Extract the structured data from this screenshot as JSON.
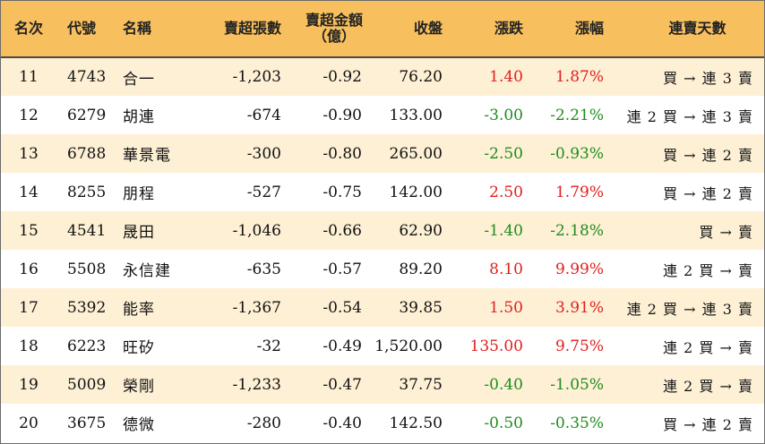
{
  "headers": {
    "rank": "名次",
    "code": "代號",
    "name": "名稱",
    "lots": "賣超張數",
    "amount_line1": "賣超金額",
    "amount_line2": "（億）",
    "close": "收盤",
    "change": "漲跌",
    "pct": "漲幅",
    "streak": "連賣天數"
  },
  "colors": {
    "header_bg": "#f7bf5e",
    "row_odd_bg": "#fdf0d5",
    "up": "#e0201e",
    "down": "#1e8c1e"
  },
  "rows": [
    {
      "rank": "11",
      "code": "4743",
      "name": "合一",
      "lots": "-1,203",
      "amount": "-0.92",
      "close": "76.20",
      "change": "1.40",
      "pct": "1.87%",
      "dir": "up",
      "streak": "買 → 連 3 賣"
    },
    {
      "rank": "12",
      "code": "6279",
      "name": "胡連",
      "lots": "-674",
      "amount": "-0.90",
      "close": "133.00",
      "change": "-3.00",
      "pct": "-2.21%",
      "dir": "down",
      "streak": "連 2 買 → 連 3 賣"
    },
    {
      "rank": "13",
      "code": "6788",
      "name": "華景電",
      "lots": "-300",
      "amount": "-0.80",
      "close": "265.00",
      "change": "-2.50",
      "pct": "-0.93%",
      "dir": "down",
      "streak": "買 → 連 2 賣"
    },
    {
      "rank": "14",
      "code": "8255",
      "name": "朋程",
      "lots": "-527",
      "amount": "-0.75",
      "close": "142.00",
      "change": "2.50",
      "pct": "1.79%",
      "dir": "up",
      "streak": "買 → 連 2 賣"
    },
    {
      "rank": "15",
      "code": "4541",
      "name": "晟田",
      "lots": "-1,046",
      "amount": "-0.66",
      "close": "62.90",
      "change": "-1.40",
      "pct": "-2.18%",
      "dir": "down",
      "streak": "買 → 賣"
    },
    {
      "rank": "16",
      "code": "5508",
      "name": "永信建",
      "lots": "-635",
      "amount": "-0.57",
      "close": "89.20",
      "change": "8.10",
      "pct": "9.99%",
      "dir": "up",
      "streak": "連 2 買 → 賣"
    },
    {
      "rank": "17",
      "code": "5392",
      "name": "能率",
      "lots": "-1,367",
      "amount": "-0.54",
      "close": "39.85",
      "change": "1.50",
      "pct": "3.91%",
      "dir": "up",
      "streak": "連 2 買 → 連 3 賣"
    },
    {
      "rank": "18",
      "code": "6223",
      "name": "旺矽",
      "lots": "-32",
      "amount": "-0.49",
      "close": "1,520.00",
      "change": "135.00",
      "pct": "9.75%",
      "dir": "up",
      "streak": "連 2 買 → 賣"
    },
    {
      "rank": "19",
      "code": "5009",
      "name": "榮剛",
      "lots": "-1,233",
      "amount": "-0.47",
      "close": "37.75",
      "change": "-0.40",
      "pct": "-1.05%",
      "dir": "down",
      "streak": "連 2 買 → 賣"
    },
    {
      "rank": "20",
      "code": "3675",
      "name": "德微",
      "lots": "-280",
      "amount": "-0.40",
      "close": "142.50",
      "change": "-0.50",
      "pct": "-0.35%",
      "dir": "down",
      "streak": "買 → 連 2 賣"
    }
  ]
}
